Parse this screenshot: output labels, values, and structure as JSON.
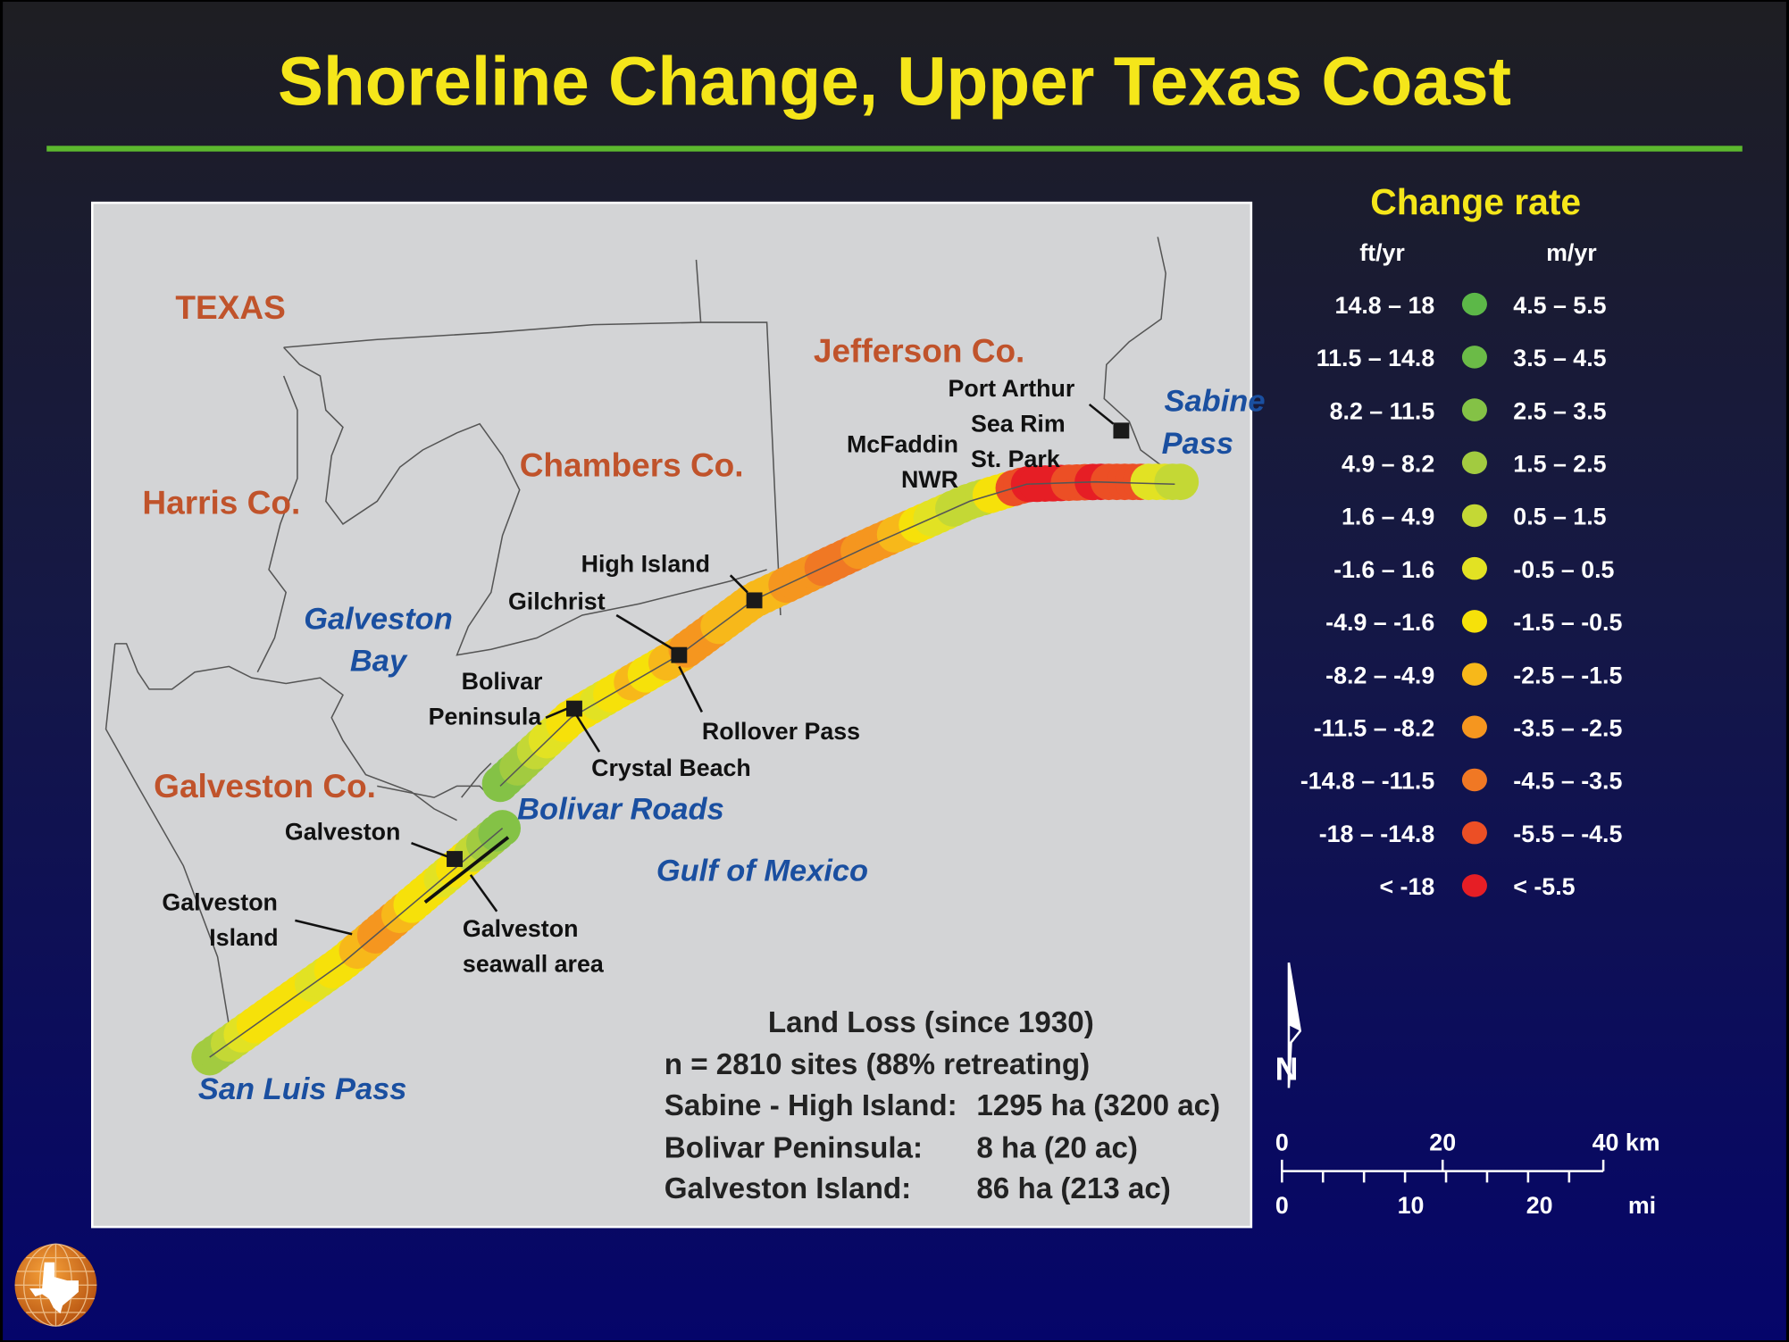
{
  "title": "Shoreline Change, Upper Texas Coast",
  "colors": {
    "title": "#f5e61a",
    "rule": "#5cb82e",
    "map_bg": "#d3d4d6",
    "county": "#c0532b",
    "water": "#1a4fa0"
  },
  "legend": {
    "title": "Change rate",
    "unit_ft": "ft/yr",
    "unit_m": "m/yr",
    "rows": [
      {
        "ft": "14.8 – 18",
        "m": "4.5 – 5.5",
        "color": "#5cb848"
      },
      {
        "ft": "11.5 – 14.8",
        "m": "3.5 – 4.5",
        "color": "#6bbb47"
      },
      {
        "ft": "8.2 – 11.5",
        "m": "2.5 – 3.5",
        "color": "#84c246"
      },
      {
        "ft": "4.9 – 8.2",
        "m": "1.5 – 2.5",
        "color": "#a2cb40"
      },
      {
        "ft": "1.6 – 4.9",
        "m": "0.5 – 1.5",
        "color": "#c4d835"
      },
      {
        "ft": "-1.6 – 1.6",
        "m": "-0.5 – 0.5",
        "color": "#e2e223"
      },
      {
        "ft": "-4.9 – -1.6",
        "m": "-1.5 – -0.5",
        "color": "#f6e10a"
      },
      {
        "ft": "-8.2 – -4.9",
        "m": "-2.5 – -1.5",
        "color": "#f7b81a"
      },
      {
        "ft": "-11.5 – -8.2",
        "m": "-3.5 – -2.5",
        "color": "#f5961f"
      },
      {
        "ft": "-14.8 – -11.5",
        "m": "-4.5 – -3.5",
        "color": "#f07824"
      },
      {
        "ft": "-18 – -14.8",
        "m": "-5.5 – -4.5",
        "color": "#ec4f25"
      },
      {
        "ft": "< -18",
        "m": "< -5.5",
        "color": "#e61e25"
      }
    ]
  },
  "map": {
    "counties": {
      "texas": "TEXAS",
      "jefferson": "Jefferson Co.",
      "chambers": "Chambers Co.",
      "harris": "Harris Co.",
      "galveston": "Galveston Co."
    },
    "water": {
      "galveston_bay_1": "Galveston",
      "galveston_bay_2": "Bay",
      "sabine_1": "Sabine",
      "sabine_2": "Pass",
      "bolivar_roads": "Bolivar Roads",
      "gulf": "Gulf of Mexico",
      "san_luis": "San Luis Pass"
    },
    "places": {
      "port_arthur": "Port Arthur",
      "sea_rim_1": "Sea Rim",
      "sea_rim_2": "St. Park",
      "mcfaddin_1": "McFaddin",
      "mcfaddin_2": "NWR",
      "high_island": "High Island",
      "gilchrist": "Gilchrist",
      "bolivar_1": "Bolivar",
      "bolivar_2": "Peninsula",
      "rollover": "Rollover Pass",
      "crystal": "Crystal Beach",
      "galveston": "Galveston",
      "gal_island_1": "Galveston",
      "gal_island_2": "Island",
      "seawall_1": "Galveston",
      "seawall_2": "seawall area"
    }
  },
  "shoreline": {
    "reaches": [
      {
        "name": "Galveston Island",
        "classes": [
          3,
          4,
          5,
          6,
          6,
          6,
          6,
          5,
          6,
          6,
          7,
          8,
          8,
          7,
          6,
          6,
          5,
          6,
          4,
          3,
          2
        ]
      },
      {
        "name": "Bolivar Peninsula to Sabine Pass",
        "classes": [
          2,
          3,
          4,
          5,
          6,
          6,
          5,
          6,
          7,
          6,
          7,
          8,
          8,
          7,
          7,
          7,
          7,
          8,
          8,
          9,
          9,
          8,
          8,
          7,
          6,
          5,
          4,
          4,
          6,
          10,
          11,
          11,
          10,
          11,
          10,
          10,
          5,
          4
        ]
      }
    ]
  },
  "land_loss": {
    "title": "Land Loss (since 1930)",
    "summary": "n = 2810 sites (88% retreating)",
    "rows": [
      {
        "label": "Sabine - High Island:",
        "value": "1295 ha (3200 ac)"
      },
      {
        "label": "Bolivar Peninsula:",
        "value": "8 ha (20 ac)"
      },
      {
        "label": "Galveston Island:",
        "value": "86 ha (213 ac)"
      }
    ]
  },
  "north_label": "N",
  "scale": {
    "km": [
      "0",
      "20",
      "40 km"
    ],
    "mi": [
      "0",
      "10",
      "20",
      "mi"
    ]
  }
}
